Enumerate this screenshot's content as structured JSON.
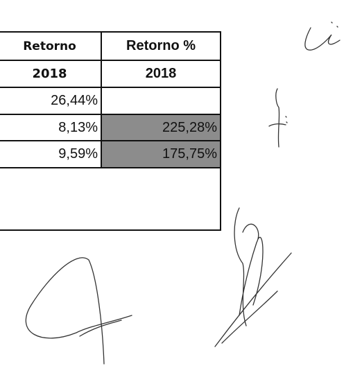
{
  "table": {
    "header": [
      "Retorno",
      "Retorno %"
    ],
    "subheader": [
      "2018",
      "2018"
    ],
    "rows": [
      [
        "26,44%"
      ],
      [
        "8,13%",
        "225,28%"
      ],
      [
        "9,59%",
        "175,75%"
      ]
    ]
  }
}
